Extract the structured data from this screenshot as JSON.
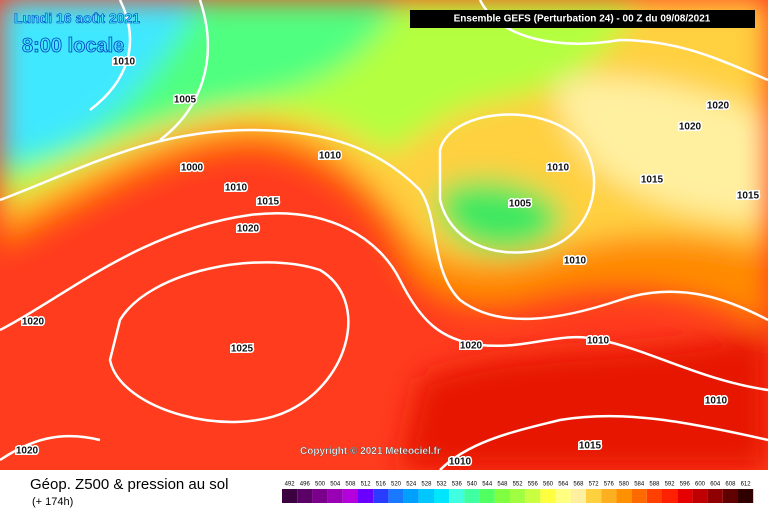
{
  "header": {
    "run": "Ensemble GEFS  (Perturbation 24)  -  00 Z du 09/08/2021"
  },
  "title": {
    "date": "Lundi 16 août 2021",
    "time": "8:00 locale"
  },
  "isobars": [
    "1010",
    "1005",
    "1000",
    "1010",
    "1015",
    "1020",
    "1010",
    "1005",
    "1010",
    "1020",
    "1020",
    "1015",
    "1015",
    "1010",
    "1020",
    "1025",
    "1020",
    "1010",
    "1010",
    "1015",
    "1020",
    "1010"
  ],
  "copyright": "Copyright © 2021 Meteociel.fr",
  "footer": {
    "field": "Géop. Z500 & pression au sol",
    "lead": "(+ 174h)"
  },
  "legend": {
    "levels": [
      492,
      496,
      500,
      504,
      508,
      512,
      516,
      520,
      524,
      528,
      532,
      536,
      540,
      544,
      548,
      552,
      556,
      560,
      564,
      568,
      572,
      576,
      580,
      584,
      588,
      592,
      596,
      600,
      604,
      608,
      612
    ],
    "colors": [
      "#3c0040",
      "#5a0066",
      "#7a008c",
      "#9a00b4",
      "#b400dc",
      "#6a00ff",
      "#2a3cff",
      "#1a78ff",
      "#00a0ff",
      "#00c8ff",
      "#00e6ff",
      "#40ffe0",
      "#40ffa0",
      "#50ff60",
      "#80ff40",
      "#a0ff40",
      "#c8ff40",
      "#ffff40",
      "#ffff80",
      "#fff0a0",
      "#ffd040",
      "#ffb020",
      "#ff9000",
      "#ff6a00",
      "#ff4000",
      "#ff2000",
      "#e60000",
      "#c00000",
      "#900000",
      "#600000",
      "#300000"
    ]
  }
}
